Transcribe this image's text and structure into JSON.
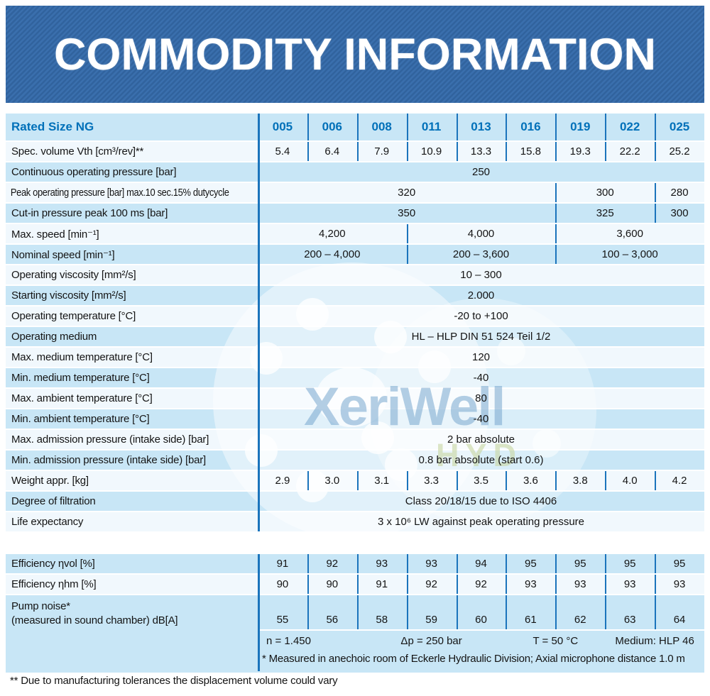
{
  "banner": {
    "title": "COMMODITY INFORMATION"
  },
  "table1": {
    "header": {
      "label": "Rated Size NG",
      "sizes": [
        "005",
        "006",
        "008",
        "011",
        "013",
        "016",
        "019",
        "022",
        "025"
      ]
    },
    "rows": [
      {
        "label": "Spec. volume Vth [cm³/rev]**",
        "shade": "light",
        "cells": [
          "5.4",
          "6.4",
          "7.9",
          "10.9",
          "13.3",
          "15.8",
          "19.3",
          "22.2",
          "25.2"
        ]
      },
      {
        "label": "Continuous operating pressure [bar]",
        "shade": "blue",
        "spans": [
          {
            "value": "250",
            "span": 9
          }
        ]
      },
      {
        "label": "Peak operating pressure [bar] max.10 sec.15% dutycycle",
        "shade": "light",
        "tight": true,
        "spans": [
          {
            "value": "320",
            "span": 6
          },
          {
            "value": "300",
            "span": 2
          },
          {
            "value": "280",
            "span": 1
          }
        ]
      },
      {
        "label": "Cut-in pressure peak 100 ms [bar]",
        "shade": "blue",
        "spans": [
          {
            "value": "350",
            "span": 6
          },
          {
            "value": "325",
            "span": 2
          },
          {
            "value": "300",
            "span": 1
          }
        ]
      },
      {
        "label": "Max. speed [min⁻¹]",
        "shade": "light",
        "spans": [
          {
            "value": "4,200",
            "span": 3
          },
          {
            "value": "4,000",
            "span": 3
          },
          {
            "value": "3,600",
            "span": 3
          }
        ]
      },
      {
        "label": "Nominal speed [min⁻¹]",
        "shade": "blue",
        "spans": [
          {
            "value": "200 – 4,000",
            "span": 3
          },
          {
            "value": "200 – 3,600",
            "span": 3
          },
          {
            "value": "100 – 3,000",
            "span": 3
          }
        ]
      },
      {
        "label": "Operating viscosity [mm²/s]",
        "shade": "light",
        "spans": [
          {
            "value": "10 – 300",
            "span": 9
          }
        ]
      },
      {
        "label": "Starting viscosity [mm²/s]",
        "shade": "blue",
        "spans": [
          {
            "value": "2.000",
            "span": 9
          }
        ]
      },
      {
        "label": "Operating temperature [°C]",
        "shade": "light",
        "spans": [
          {
            "value": "-20 to +100",
            "span": 9
          }
        ]
      },
      {
        "label": "Operating medium",
        "shade": "blue",
        "spans": [
          {
            "value": "HL – HLP DIN 51 524 Teil 1/2",
            "span": 9
          }
        ]
      },
      {
        "label": "Max. medium temperature [°C]",
        "shade": "light",
        "spans": [
          {
            "value": "120",
            "span": 9
          }
        ]
      },
      {
        "label": "Min. medium temperature [°C]",
        "shade": "blue",
        "spans": [
          {
            "value": "-40",
            "span": 9
          }
        ]
      },
      {
        "label": "Max. ambient temperature [°C]",
        "shade": "light",
        "spans": [
          {
            "value": "80",
            "span": 9
          }
        ]
      },
      {
        "label": "Min. ambient temperature [°C]",
        "shade": "blue",
        "spans": [
          {
            "value": "-40",
            "span": 9
          }
        ]
      },
      {
        "label": "Max. admission pressure (intake side) [bar]",
        "shade": "light",
        "spans": [
          {
            "value": "2 bar absolute",
            "span": 9
          }
        ]
      },
      {
        "label": "Min. admission pressure (intake side) [bar]",
        "shade": "blue",
        "spans": [
          {
            "value": "0.8 bar absolute (start 0.6)",
            "span": 9
          }
        ]
      },
      {
        "label": "Weight appr. [kg]",
        "shade": "light",
        "cells": [
          "2.9",
          "3.0",
          "3.1",
          "3.3",
          "3.5",
          "3.6",
          "3.8",
          "4.0",
          "4.2"
        ]
      },
      {
        "label": "Degree of filtration",
        "shade": "blue",
        "spans": [
          {
            "value": "Class 20/18/15 due to ISO 4406",
            "span": 9
          }
        ]
      },
      {
        "label": "Life expectancy",
        "shade": "light",
        "spans": [
          {
            "value": "3 x 10⁶ LW against peak operating pressure",
            "span": 9
          }
        ]
      }
    ]
  },
  "table2": {
    "rows": [
      {
        "label": "Efficiency ηvol [%]",
        "shade": "blue",
        "cells": [
          "91",
          "92",
          "93",
          "93",
          "94",
          "95",
          "95",
          "95",
          "95"
        ]
      },
      {
        "label": "Efficiency ηhm [%]",
        "shade": "light",
        "cells": [
          "90",
          "90",
          "91",
          "92",
          "92",
          "93",
          "93",
          "93",
          "93"
        ]
      }
    ],
    "noise_block": {
      "label_line1": "Pump noise*",
      "label_line2": "(measured in sound chamber) dB[A]",
      "values": [
        "55",
        "56",
        "58",
        "59",
        "60",
        "61",
        "62",
        "63",
        "64"
      ],
      "conditions": [
        "n = 1.450",
        "Δp = 250 bar",
        "T = 50 °C",
        "Medium: HLP 46"
      ],
      "footnote": "* Measured in anechoic room of Eckerle Hydraulic Division; Axial microphone distance 1.0 m"
    }
  },
  "footnote_bottom": "** Due to manufacturing tolerances the displacement volume could vary",
  "watermark": {
    "brand": "XeriWell",
    "sub": "HYD"
  },
  "colors": {
    "banner_blue": "#3a6fad",
    "banner_stripe": "#31639e",
    "row_blue": "#c8e6f6",
    "row_light": "#f1f8fd",
    "divider_blue": "#1b74bc",
    "header_text_blue": "#0070b9"
  }
}
